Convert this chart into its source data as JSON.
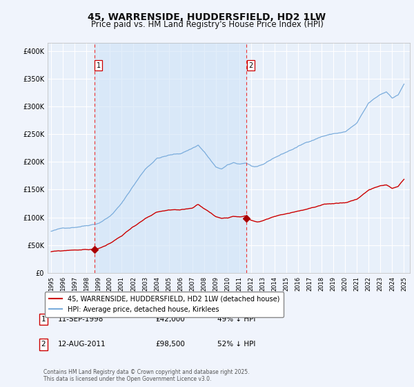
{
  "title": "45, WARRENSIDE, HUDDERSFIELD, HD2 1LW",
  "subtitle": "Price paid vs. HM Land Registry's House Price Index (HPI)",
  "title_fontsize": 10,
  "subtitle_fontsize": 8.5,
  "ylabel_ticks": [
    "£0",
    "£50K",
    "£100K",
    "£150K",
    "£200K",
    "£250K",
    "£300K",
    "£350K",
    "£400K"
  ],
  "ytick_vals": [
    0,
    50000,
    100000,
    150000,
    200000,
    250000,
    300000,
    350000,
    400000
  ],
  "ylim": [
    0,
    415000
  ],
  "xlim_start": 1994.7,
  "xlim_end": 2025.5,
  "background_color": "#f0f4fc",
  "plot_bg_color": "#e8f0fa",
  "grid_color": "#ffffff",
  "red_line_color": "#cc0000",
  "blue_line_color": "#7aacdc",
  "sale1_date_x": 1998.69,
  "sale1_price": 42000,
  "sale2_date_x": 2011.62,
  "sale2_price": 98500,
  "marker_color": "#aa0000",
  "vline_color": "#ee3333",
  "shade_color": "#d0e4f8",
  "legend_label_red": "45, WARRENSIDE, HUDDERSFIELD, HD2 1LW (detached house)",
  "legend_label_blue": "HPI: Average price, detached house, Kirklees",
  "table_entries": [
    {
      "num": "1",
      "date": "11-SEP-1998",
      "price": "£42,000",
      "hpi": "49% ↓ HPI"
    },
    {
      "num": "2",
      "date": "12-AUG-2011",
      "price": "£98,500",
      "hpi": "52% ↓ HPI"
    }
  ],
  "footer": "Contains HM Land Registry data © Crown copyright and database right 2025.\nThis data is licensed under the Open Government Licence v3.0."
}
